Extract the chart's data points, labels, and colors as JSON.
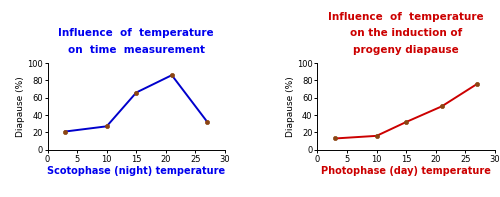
{
  "left": {
    "title": "Influence  of  temperature\non  time  measurement",
    "title_color": "#0000EE",
    "xlabel": "Scotophase (night) temperature",
    "xlabel_color": "#0000EE",
    "ylabel": "Diapause (%)",
    "x": [
      3,
      10,
      15,
      21,
      27
    ],
    "y": [
      21,
      27,
      66,
      86,
      32
    ],
    "line_color": "#0000CC",
    "marker_color": "#8B4513",
    "xlim": [
      0,
      30
    ],
    "ylim": [
      0,
      100
    ],
    "xticks": [
      0,
      5,
      10,
      15,
      20,
      25,
      30
    ],
    "yticks": [
      0,
      20,
      40,
      60,
      80,
      100
    ]
  },
  "right": {
    "title": "Influence  of  temperature\non the induction of\nprogeny diapause",
    "title_color": "#CC0000",
    "xlabel": "Photophase (day) temperature",
    "xlabel_color": "#CC0000",
    "ylabel": "Diapause (%)",
    "x": [
      3,
      10,
      15,
      21,
      27
    ],
    "y": [
      13,
      16,
      32,
      50,
      76
    ],
    "line_color": "#CC0000",
    "marker_color": "#8B4513",
    "xlim": [
      0,
      30
    ],
    "ylim": [
      0,
      100
    ],
    "xticks": [
      0,
      5,
      10,
      15,
      20,
      25,
      30
    ],
    "yticks": [
      0,
      20,
      40,
      60,
      80,
      100
    ]
  },
  "figsize": [
    5.0,
    1.97
  ],
  "dpi": 100
}
